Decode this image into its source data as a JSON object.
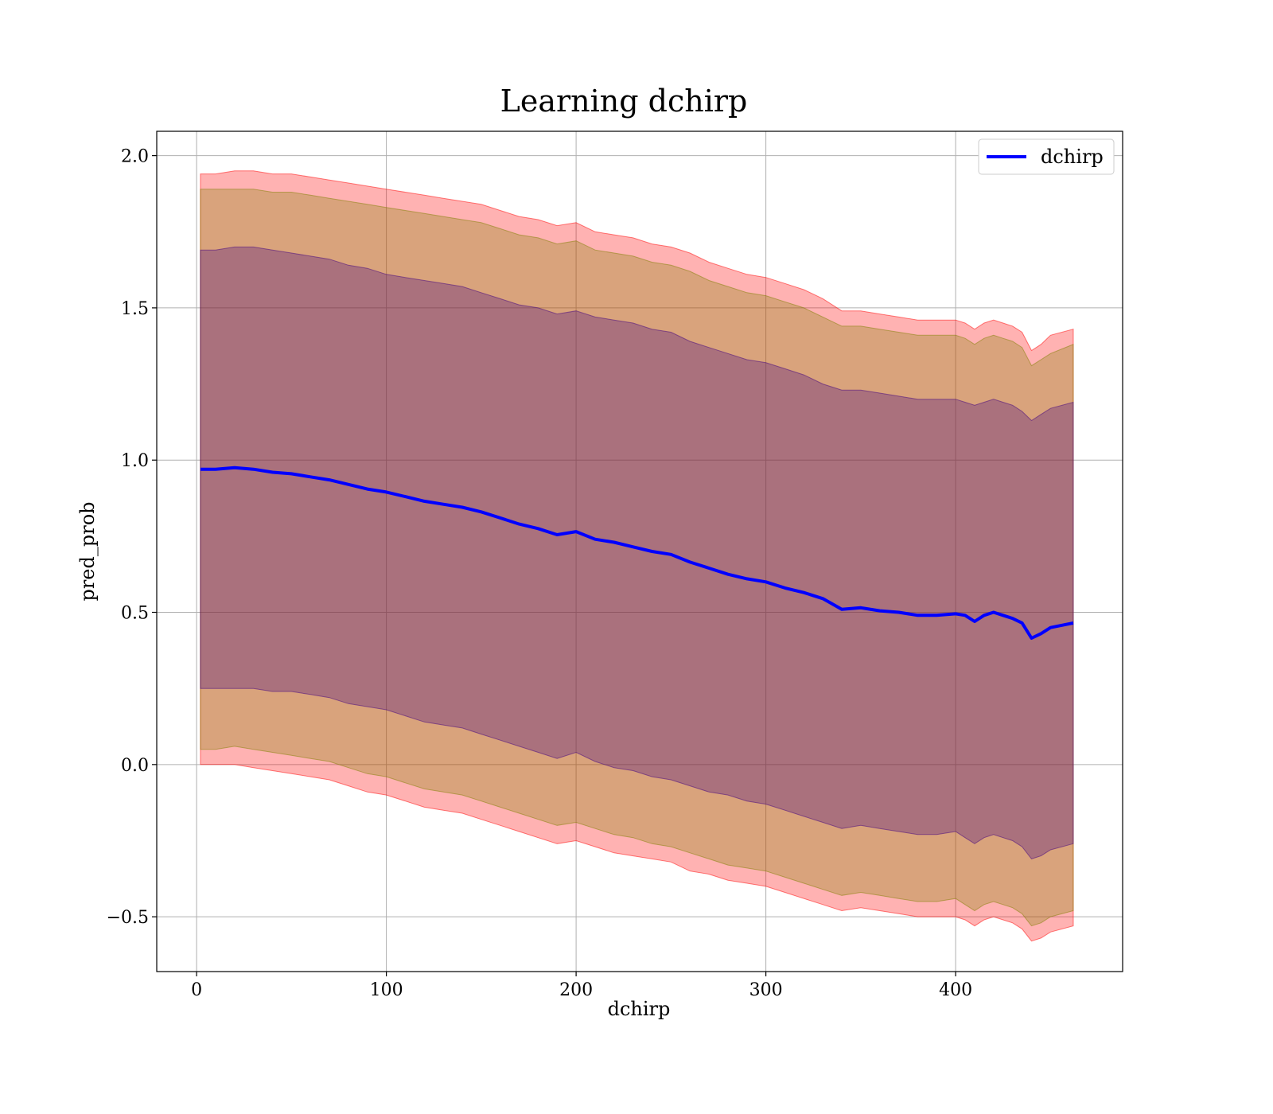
{
  "chart_data": {
    "type": "area",
    "title": "Learning dchirp",
    "xlabel": "dchirp",
    "ylabel": "pred_prob",
    "xlim": [
      -21,
      488
    ],
    "ylim": [
      -0.68,
      2.08
    ],
    "xticks": [
      0,
      100,
      200,
      300,
      400
    ],
    "xtick_labels": [
      "0",
      "100",
      "200",
      "300",
      "400"
    ],
    "yticks": [
      -0.5,
      0.0,
      0.5,
      1.0,
      1.5,
      2.0
    ],
    "ytick_labels": [
      "−0.5",
      "0.0",
      "0.5",
      "1.0",
      "1.5",
      "2.0"
    ],
    "grid": true,
    "legend": {
      "position": "top-right",
      "entries": [
        "dchirp"
      ]
    },
    "x": [
      2,
      10,
      20,
      30,
      40,
      50,
      60,
      70,
      80,
      90,
      100,
      110,
      120,
      130,
      140,
      150,
      160,
      170,
      180,
      190,
      200,
      210,
      220,
      230,
      240,
      250,
      260,
      270,
      280,
      290,
      300,
      310,
      320,
      330,
      340,
      350,
      360,
      370,
      380,
      390,
      400,
      405,
      410,
      415,
      420,
      425,
      430,
      435,
      440,
      445,
      450,
      462
    ],
    "series": [
      {
        "name": "dchirp",
        "color": "#0000ff",
        "values": [
          0.97,
          0.97,
          0.975,
          0.97,
          0.96,
          0.955,
          0.945,
          0.935,
          0.92,
          0.905,
          0.895,
          0.88,
          0.865,
          0.855,
          0.845,
          0.83,
          0.81,
          0.79,
          0.775,
          0.755,
          0.765,
          0.74,
          0.73,
          0.715,
          0.7,
          0.69,
          0.665,
          0.645,
          0.625,
          0.61,
          0.6,
          0.58,
          0.565,
          0.545,
          0.51,
          0.515,
          0.505,
          0.5,
          0.49,
          0.49,
          0.495,
          0.49,
          0.47,
          0.49,
          0.5,
          0.49,
          0.48,
          0.465,
          0.415,
          0.43,
          0.45,
          0.465
        ]
      }
    ],
    "bands": [
      {
        "color": "#ff0000",
        "opacity": 0.3,
        "lower": [
          0.0,
          0.0,
          0.0,
          -0.01,
          -0.02,
          -0.03,
          -0.04,
          -0.05,
          -0.07,
          -0.09,
          -0.1,
          -0.12,
          -0.14,
          -0.15,
          -0.16,
          -0.18,
          -0.2,
          -0.22,
          -0.24,
          -0.26,
          -0.25,
          -0.27,
          -0.29,
          -0.3,
          -0.31,
          -0.32,
          -0.35,
          -0.36,
          -0.38,
          -0.39,
          -0.4,
          -0.42,
          -0.44,
          -0.46,
          -0.48,
          -0.47,
          -0.48,
          -0.49,
          -0.5,
          -0.5,
          -0.5,
          -0.51,
          -0.53,
          -0.51,
          -0.5,
          -0.51,
          -0.52,
          -0.54,
          -0.58,
          -0.57,
          -0.55,
          -0.53
        ],
        "upper": [
          1.94,
          1.94,
          1.95,
          1.95,
          1.94,
          1.94,
          1.93,
          1.92,
          1.91,
          1.9,
          1.89,
          1.88,
          1.87,
          1.86,
          1.85,
          1.84,
          1.82,
          1.8,
          1.79,
          1.77,
          1.78,
          1.75,
          1.74,
          1.73,
          1.71,
          1.7,
          1.68,
          1.65,
          1.63,
          1.61,
          1.6,
          1.58,
          1.56,
          1.53,
          1.49,
          1.49,
          1.48,
          1.47,
          1.46,
          1.46,
          1.46,
          1.45,
          1.43,
          1.45,
          1.46,
          1.45,
          1.44,
          1.42,
          1.36,
          1.38,
          1.41,
          1.43
        ]
      },
      {
        "color": "#808000",
        "opacity": 0.3,
        "lower": [
          0.05,
          0.05,
          0.06,
          0.05,
          0.04,
          0.03,
          0.02,
          0.01,
          -0.01,
          -0.03,
          -0.04,
          -0.06,
          -0.08,
          -0.09,
          -0.1,
          -0.12,
          -0.14,
          -0.16,
          -0.18,
          -0.2,
          -0.19,
          -0.21,
          -0.23,
          -0.24,
          -0.26,
          -0.27,
          -0.29,
          -0.31,
          -0.33,
          -0.34,
          -0.35,
          -0.37,
          -0.39,
          -0.41,
          -0.43,
          -0.42,
          -0.43,
          -0.44,
          -0.45,
          -0.45,
          -0.44,
          -0.46,
          -0.48,
          -0.46,
          -0.45,
          -0.46,
          -0.47,
          -0.49,
          -0.53,
          -0.52,
          -0.5,
          -0.48
        ],
        "upper": [
          1.89,
          1.89,
          1.89,
          1.89,
          1.88,
          1.88,
          1.87,
          1.86,
          1.85,
          1.84,
          1.83,
          1.82,
          1.81,
          1.8,
          1.79,
          1.78,
          1.76,
          1.74,
          1.73,
          1.71,
          1.72,
          1.69,
          1.68,
          1.67,
          1.65,
          1.64,
          1.62,
          1.59,
          1.57,
          1.55,
          1.54,
          1.52,
          1.5,
          1.47,
          1.44,
          1.44,
          1.43,
          1.42,
          1.41,
          1.41,
          1.41,
          1.4,
          1.38,
          1.4,
          1.41,
          1.4,
          1.39,
          1.37,
          1.31,
          1.33,
          1.35,
          1.38
        ]
      },
      {
        "color": "#400080",
        "opacity": 0.3,
        "lower": [
          0.25,
          0.25,
          0.25,
          0.25,
          0.24,
          0.24,
          0.23,
          0.22,
          0.2,
          0.19,
          0.18,
          0.16,
          0.14,
          0.13,
          0.12,
          0.1,
          0.08,
          0.06,
          0.04,
          0.02,
          0.04,
          0.01,
          -0.01,
          -0.02,
          -0.04,
          -0.05,
          -0.07,
          -0.09,
          -0.1,
          -0.12,
          -0.13,
          -0.15,
          -0.17,
          -0.19,
          -0.21,
          -0.2,
          -0.21,
          -0.22,
          -0.23,
          -0.23,
          -0.22,
          -0.24,
          -0.26,
          -0.24,
          -0.23,
          -0.24,
          -0.25,
          -0.27,
          -0.31,
          -0.3,
          -0.28,
          -0.26
        ],
        "upper": [
          1.69,
          1.69,
          1.7,
          1.7,
          1.69,
          1.68,
          1.67,
          1.66,
          1.64,
          1.63,
          1.61,
          1.6,
          1.59,
          1.58,
          1.57,
          1.55,
          1.53,
          1.51,
          1.5,
          1.48,
          1.49,
          1.47,
          1.46,
          1.45,
          1.43,
          1.42,
          1.39,
          1.37,
          1.35,
          1.33,
          1.32,
          1.3,
          1.28,
          1.25,
          1.23,
          1.23,
          1.22,
          1.21,
          1.2,
          1.2,
          1.2,
          1.19,
          1.18,
          1.19,
          1.2,
          1.19,
          1.18,
          1.16,
          1.13,
          1.15,
          1.17,
          1.19
        ]
      }
    ]
  }
}
